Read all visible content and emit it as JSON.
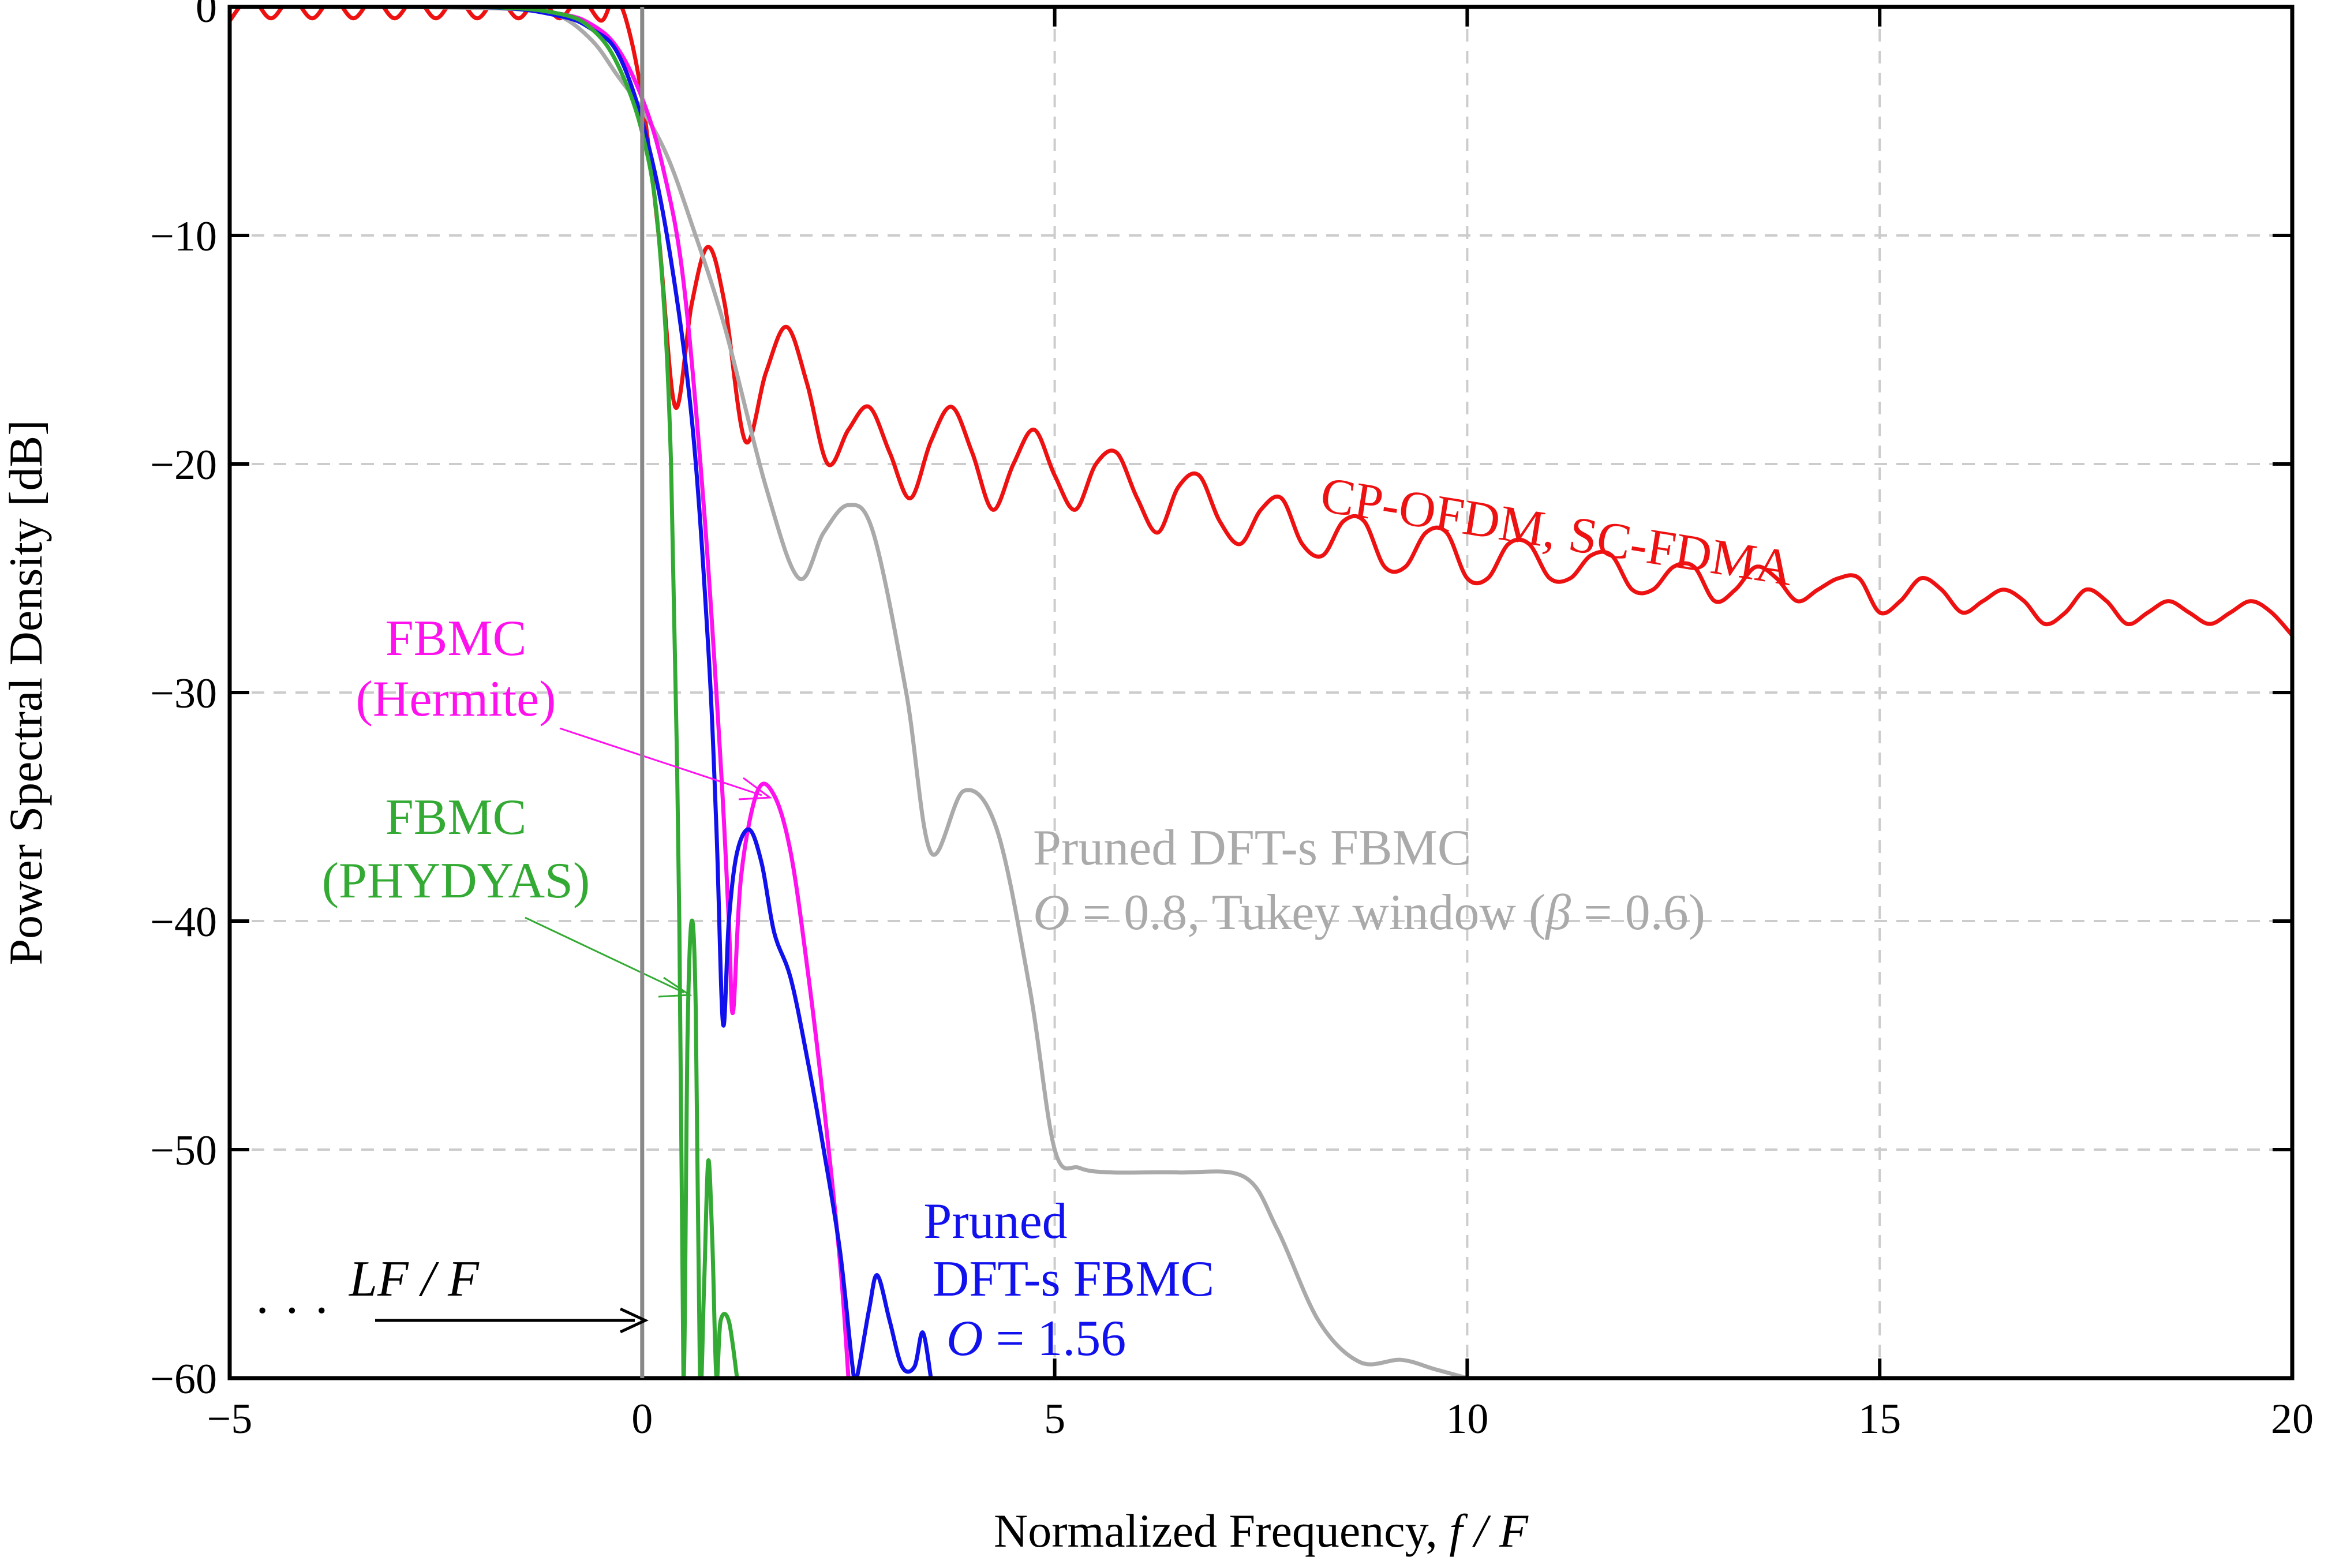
{
  "chart_data": {
    "type": "line",
    "title": "",
    "xlabel": "Normalized Frequency,",
    "xlabel_math": "f / F",
    "ylabel": "Power Spectral Density [dB]",
    "xlim": [
      -5,
      20
    ],
    "ylim": [
      -60,
      0
    ],
    "grid": true,
    "xticks": [
      -5,
      0,
      5,
      10,
      15,
      20
    ],
    "xtick_labels": [
      "−5",
      "0",
      "5",
      "10",
      "15",
      "20"
    ],
    "yticks": [
      0,
      -10,
      -20,
      -30,
      -40,
      -50,
      -60
    ],
    "ytick_labels": [
      "0",
      "−10",
      "−20",
      "−30",
      "−40",
      "−50",
      "−60"
    ],
    "colors": {
      "cp_ofdm": "#ee1111",
      "pruned_tukey": "#aaaaaa",
      "hermite": "#ff11ee",
      "pruned_blue": "#1111ee",
      "phydyas": "#33aa33",
      "axis": "#000000",
      "grid": "#cccccc",
      "boundary": "#888888"
    },
    "series": [
      {
        "name": "CP-OFDM, SC-FDMA",
        "color": "#ee1111",
        "x": [
          -5,
          -4.75,
          -4.5,
          -4.25,
          -4.0,
          -3.75,
          -3.5,
          -3.25,
          -3.0,
          -2.75,
          -2.5,
          -2.25,
          -2.0,
          -1.75,
          -1.5,
          -1.25,
          -1.0,
          -0.75,
          -0.5,
          -0.35,
          -0.2,
          0.0,
          0.2,
          0.4,
          0.6,
          0.8,
          1.0,
          1.25,
          1.5,
          1.75,
          2.0,
          2.25,
          2.5,
          2.75,
          3.0,
          3.25,
          3.5,
          3.75,
          4.0,
          4.25,
          4.5,
          4.75,
          5.0,
          5.25,
          5.5,
          5.75,
          6.0,
          6.25,
          6.5,
          6.75,
          7.0,
          7.25,
          7.5,
          7.75,
          8.0,
          8.25,
          8.5,
          8.75,
          9.0,
          9.25,
          9.5,
          9.75,
          10.0,
          10.25,
          10.5,
          10.75,
          11.0,
          11.25,
          11.5,
          11.75,
          12.0,
          12.25,
          12.5,
          12.75,
          13.0,
          13.25,
          13.5,
          13.75,
          14.0,
          14.25,
          14.5,
          14.75,
          15.0,
          15.25,
          15.5,
          15.75,
          16.0,
          16.25,
          16.5,
          16.75,
          17.0,
          17.25,
          17.5,
          17.75,
          18.0,
          18.25,
          18.5,
          18.75,
          19.0,
          19.25,
          19.5,
          19.75,
          20.0
        ],
        "values": [
          -0.6,
          0.4,
          -0.5,
          0.4,
          -0.5,
          0.4,
          -0.5,
          0.4,
          -0.5,
          0.4,
          -0.5,
          0.4,
          -0.5,
          0.4,
          -0.5,
          0.4,
          -0.5,
          0.4,
          -0.6,
          0.3,
          -0.5,
          -4.0,
          -10.0,
          -17.5,
          -13.0,
          -10.5,
          -13.0,
          -19.0,
          -16.0,
          -14.0,
          -16.5,
          -20.0,
          -18.5,
          -17.5,
          -19.5,
          -21.5,
          -19.0,
          -17.5,
          -19.5,
          -22.0,
          -20.0,
          -18.5,
          -20.5,
          -22.0,
          -20.0,
          -19.5,
          -21.5,
          -23.0,
          -21.0,
          -20.5,
          -22.5,
          -23.5,
          -22.0,
          -21.5,
          -23.5,
          -24.0,
          -22.5,
          -22.5,
          -24.5,
          -24.5,
          -23.0,
          -23.0,
          -25.0,
          -25.0,
          -23.5,
          -23.5,
          -25.0,
          -25.0,
          -24.0,
          -24.0,
          -25.5,
          -25.5,
          -24.5,
          -24.5,
          -26.0,
          -25.5,
          -24.5,
          -25.0,
          -26.0,
          -25.5,
          -25.0,
          -25.0,
          -26.5,
          -26.0,
          -25.0,
          -25.5,
          -26.5,
          -26.0,
          -25.5,
          -26.0,
          -27.0,
          -26.5,
          -25.5,
          -26.0,
          -27.0,
          -26.5,
          -26.0,
          -26.5,
          -27.0,
          -26.5,
          -26.0,
          -26.5,
          -27.5
        ]
      },
      {
        "name": "Pruned DFT-s FBMC, O = 0.8, Tukey window (β = 0.6)",
        "color": "#aaaaaa",
        "x": [
          -5,
          -3.0,
          -1.5,
          -1.0,
          -0.6,
          -0.3,
          0.0,
          0.3,
          0.6,
          1.0,
          1.5,
          1.9,
          2.2,
          2.5,
          2.8,
          3.2,
          3.5,
          3.9,
          4.3,
          4.7,
          5.0,
          5.3,
          5.7,
          6.5,
          7.3,
          7.7,
          8.2,
          8.7,
          9.2,
          9.6,
          10.0
        ],
        "values": [
          0.0,
          0.0,
          -0.1,
          -0.4,
          -1.5,
          -3.0,
          -4.5,
          -6.5,
          -9.5,
          -14.0,
          -21.0,
          -25.0,
          -23.0,
          -21.8,
          -23.0,
          -30.0,
          -37.0,
          -34.3,
          -36.0,
          -43.0,
          -50.0,
          -50.8,
          -51.0,
          -51.0,
          -51.2,
          -53.5,
          -57.5,
          -59.3,
          -59.2,
          -59.6,
          -60.0
        ]
      },
      {
        "name": "FBMC (Hermite)",
        "color": "#ff11ee",
        "x": [
          -5,
          -2.0,
          -1.0,
          -0.6,
          -0.3,
          0.0,
          0.25,
          0.5,
          0.75,
          0.95,
          1.05,
          1.1,
          1.2,
          1.4,
          1.6,
          1.8,
          2.0,
          2.2,
          2.4,
          2.5
        ],
        "values": [
          0.0,
          0.0,
          -0.3,
          -0.8,
          -1.8,
          -4.0,
          -7.0,
          -12.0,
          -22.0,
          -33.0,
          -40.0,
          -44.0,
          -38.0,
          -34.3,
          -34.5,
          -37.0,
          -42.0,
          -48.0,
          -55.0,
          -60.0
        ]
      },
      {
        "name": "Pruned DFT-s FBMC, O = 1.56",
        "color": "#1111ee",
        "x": [
          -5,
          -2.0,
          -1.0,
          -0.6,
          -0.3,
          0.0,
          0.3,
          0.6,
          0.8,
          0.9,
          0.98,
          1.05,
          1.15,
          1.3,
          1.45,
          1.6,
          1.8,
          2.0,
          2.2,
          2.4,
          2.55,
          2.6,
          2.75,
          2.85,
          3.0,
          3.15,
          3.3,
          3.4,
          3.5
        ],
        "values": [
          0.0,
          0.0,
          -0.4,
          -1.0,
          -2.0,
          -5.0,
          -10.0,
          -18.0,
          -28.0,
          -36.0,
          -44.5,
          -40.0,
          -37.0,
          -36.0,
          -37.5,
          -40.5,
          -42.5,
          -46.0,
          -50.0,
          -54.5,
          -59.5,
          -60.0,
          -57.0,
          -55.5,
          -57.5,
          -59.5,
          -59.5,
          -58.0,
          -60.0
        ]
      },
      {
        "name": "FBMC (PHYDYAS)",
        "color": "#33aa33",
        "x": [
          -5,
          -2.0,
          -1.0,
          -0.6,
          -0.3,
          0.0,
          0.2,
          0.35,
          0.45,
          0.5,
          0.55,
          0.6,
          0.65,
          0.7,
          0.75,
          0.8,
          0.85,
          0.9,
          0.95,
          1.05,
          1.15
        ],
        "values": [
          0.0,
          0.0,
          -0.3,
          -1.0,
          -2.5,
          -5.5,
          -10.0,
          -20.0,
          -40.0,
          -60.0,
          -45.0,
          -40.0,
          -44.0,
          -60.0,
          -56.0,
          -50.5,
          -54.0,
          -60.0,
          -57.5,
          -57.5,
          -60.0
        ]
      }
    ],
    "annotations": {
      "cp_ofdm_label": "CP-OFDM, SC-FDMA",
      "hermite_line1": "FBMC",
      "hermite_line2": "(Hermite)",
      "phydyas_line1": "FBMC",
      "phydyas_line2": "(PHYDYAS)",
      "pruned_gray_line1": "Pruned DFT-s FBMC",
      "pruned_gray_math_O": "O",
      "pruned_gray_eq": " = 0.8, Tukey window (",
      "pruned_gray_math_beta": "β",
      "pruned_gray_beta_val": " = 0.6)",
      "pruned_blue_line1": "Pruned",
      "pruned_blue_line2": "DFT-s FBMC",
      "pruned_blue_math_O": "O",
      "pruned_blue_val": " = 1.56",
      "ellipsis": "· · ·",
      "lf_label": "LF / F"
    }
  }
}
